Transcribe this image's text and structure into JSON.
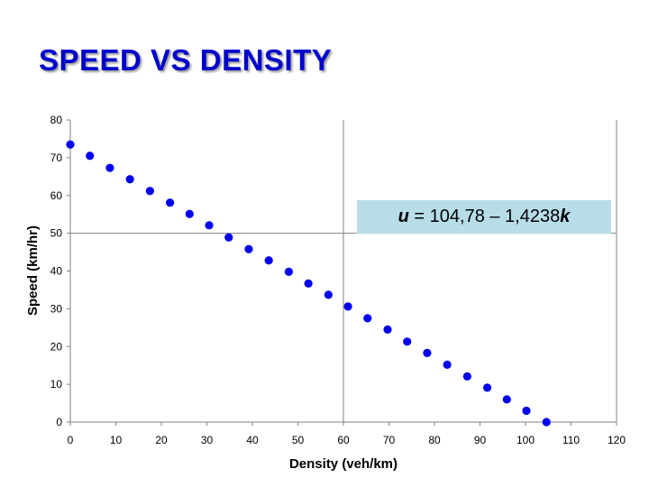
{
  "title": "SPEED VS DENSITY",
  "equation": {
    "var_u": "u",
    "middle": " = 104,78 – 1,4238",
    "var_k": "k"
  },
  "chart_data": {
    "type": "scatter",
    "xlabel": "Density (veh/km)",
    "ylabel": "Speed (km/hr)",
    "xlim": [
      0,
      120
    ],
    "ylim": [
      0,
      80
    ],
    "xticks": [
      0,
      10,
      20,
      30,
      40,
      50,
      60,
      70,
      80,
      90,
      100,
      110,
      120
    ],
    "yticks": [
      0,
      10,
      20,
      30,
      40,
      50,
      60,
      70,
      80
    ],
    "grid": "vertical at x = 60 and x = 120; horizontal at y = 50",
    "marker_color": "#0000ee",
    "points": [
      {
        "x": 0.0,
        "y": 73.5
      },
      {
        "x": 4.3,
        "y": 70.5
      },
      {
        "x": 8.7,
        "y": 67.3
      },
      {
        "x": 13.1,
        "y": 64.3
      },
      {
        "x": 17.5,
        "y": 61.2
      },
      {
        "x": 21.9,
        "y": 58.1
      },
      {
        "x": 26.2,
        "y": 55.1
      },
      {
        "x": 30.5,
        "y": 52.1
      },
      {
        "x": 34.8,
        "y": 48.9
      },
      {
        "x": 39.2,
        "y": 45.8
      },
      {
        "x": 43.6,
        "y": 42.8
      },
      {
        "x": 48.0,
        "y": 39.8
      },
      {
        "x": 52.3,
        "y": 36.7
      },
      {
        "x": 56.7,
        "y": 33.7
      },
      {
        "x": 61.0,
        "y": 30.6
      },
      {
        "x": 65.3,
        "y": 27.5
      },
      {
        "x": 69.7,
        "y": 24.5
      },
      {
        "x": 74.0,
        "y": 21.3
      },
      {
        "x": 78.4,
        "y": 18.3
      },
      {
        "x": 82.8,
        "y": 15.2
      },
      {
        "x": 87.2,
        "y": 12.1
      },
      {
        "x": 91.6,
        "y": 9.1
      },
      {
        "x": 95.9,
        "y": 6.0
      },
      {
        "x": 100.2,
        "y": 3.0
      },
      {
        "x": 104.6,
        "y": 0.0
      }
    ]
  }
}
